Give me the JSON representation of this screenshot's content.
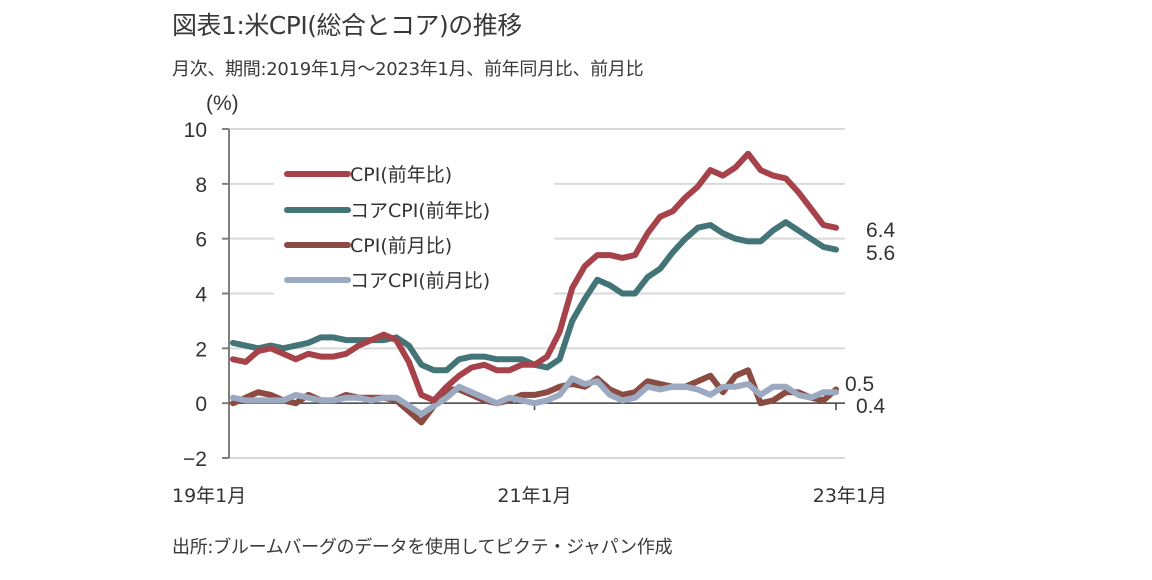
{
  "title": "図表1:米CPI(総合とコア)の推移",
  "subtitle": "月次、期間:2019年1月～2023年1月、前年同月比、前月比",
  "source": "出所:ブルームバーグのデータを使用してピクテ・ジャパン作成",
  "chart_data": {
    "type": "line",
    "title": "図表1:米CPI(総合とコア)の推移",
    "subtitle": "月次、期間:2019年1月～2023年1月、前年同月比、前月比",
    "ylabel": "(%)",
    "xlabel": "",
    "ylim": [
      -2,
      10
    ],
    "yticks": [
      -2,
      0,
      2,
      4,
      6,
      8,
      10
    ],
    "ytick_labels": [
      "−2",
      "0",
      "2",
      "4",
      "6",
      "8",
      "10"
    ],
    "x_start": "2019-01",
    "x_end": "2023-01",
    "x_ticks": [
      {
        "month_index": 0,
        "label": "19年1月"
      },
      {
        "month_index": 24,
        "label": "21年1月"
      },
      {
        "month_index": 48,
        "label": "23年1月"
      }
    ],
    "grid": "horizontal",
    "legend_position": "upper-left inside",
    "series": [
      {
        "name": "CPI(前年比)",
        "color": "#A8424A",
        "values": [
          1.6,
          1.5,
          1.9,
          2.0,
          1.8,
          1.6,
          1.8,
          1.7,
          1.7,
          1.8,
          2.1,
          2.3,
          2.5,
          2.3,
          1.5,
          0.3,
          0.1,
          0.6,
          1.0,
          1.3,
          1.4,
          1.2,
          1.2,
          1.4,
          1.4,
          1.7,
          2.6,
          4.2,
          5.0,
          5.4,
          5.4,
          5.3,
          5.4,
          6.2,
          6.8,
          7.0,
          7.5,
          7.9,
          8.5,
          8.3,
          8.6,
          9.1,
          8.5,
          8.3,
          8.2,
          7.7,
          7.1,
          6.5,
          6.4
        ],
        "end_label": "6.4"
      },
      {
        "name": "コアCPI(前年比)",
        "color": "#437478",
        "values": [
          2.2,
          2.1,
          2.0,
          2.1,
          2.0,
          2.1,
          2.2,
          2.4,
          2.4,
          2.3,
          2.3,
          2.3,
          2.3,
          2.4,
          2.1,
          1.4,
          1.2,
          1.2,
          1.6,
          1.7,
          1.7,
          1.6,
          1.6,
          1.6,
          1.4,
          1.3,
          1.6,
          3.0,
          3.8,
          4.5,
          4.3,
          4.0,
          4.0,
          4.6,
          4.9,
          5.5,
          6.0,
          6.4,
          6.5,
          6.2,
          6.0,
          5.9,
          5.9,
          6.3,
          6.6,
          6.3,
          6.0,
          5.7,
          5.6
        ],
        "end_label": "5.6"
      },
      {
        "name": "CPI(前月比)",
        "color": "#8B4A42",
        "values": [
          0.0,
          0.2,
          0.4,
          0.3,
          0.1,
          0.0,
          0.3,
          0.1,
          0.1,
          0.3,
          0.2,
          0.2,
          0.2,
          0.1,
          -0.3,
          -0.7,
          -0.1,
          0.5,
          0.5,
          0.3,
          0.1,
          0.0,
          0.1,
          0.3,
          0.3,
          0.4,
          0.6,
          0.7,
          0.6,
          0.9,
          0.5,
          0.3,
          0.4,
          0.8,
          0.7,
          0.6,
          0.6,
          0.8,
          1.0,
          0.4,
          1.0,
          1.2,
          0.0,
          0.1,
          0.4,
          0.4,
          0.2,
          0.1,
          0.5
        ],
        "end_label": "0.5"
      },
      {
        "name": "コアCPI(前月比)",
        "color": "#9BAAC0",
        "values": [
          0.2,
          0.1,
          0.1,
          0.1,
          0.1,
          0.3,
          0.2,
          0.1,
          0.1,
          0.2,
          0.2,
          0.1,
          0.2,
          0.2,
          -0.1,
          -0.4,
          -0.1,
          0.2,
          0.6,
          0.4,
          0.2,
          0.0,
          0.2,
          0.1,
          0.0,
          0.1,
          0.3,
          0.9,
          0.7,
          0.8,
          0.3,
          0.1,
          0.2,
          0.6,
          0.5,
          0.6,
          0.6,
          0.5,
          0.3,
          0.6,
          0.6,
          0.7,
          0.3,
          0.6,
          0.6,
          0.3,
          0.2,
          0.4,
          0.4
        ],
        "end_label": "0.4"
      }
    ]
  }
}
